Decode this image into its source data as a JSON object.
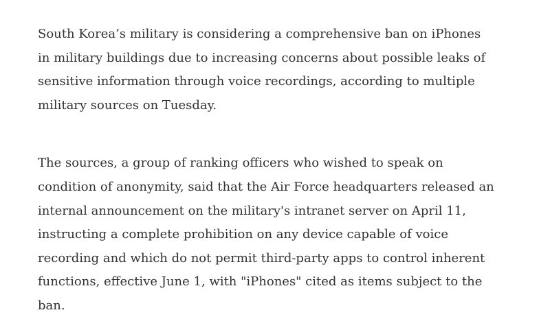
{
  "article": {
    "paragraphs": [
      {
        "lines": [
          "South Korea’s military is considering a comprehensive ban on iPhones",
          "in military buildings due to increasing concerns about possible leaks of",
          "sensitive information through voice recordings, according to multiple",
          "military sources on Tuesday."
        ]
      },
      {
        "lines": [
          "The sources, a group of ranking officers who wished to speak on",
          "condition of anonymity, said that the Air Force headquarters released an",
          "internal announcement on the military's intranet server on April 11,",
          "instructing a complete prohibition on any device capable of voice",
          "recording and which do not permit third-party apps to control inherent",
          "functions, effective June 1, with \"iPhones\" cited as items subject to the",
          "ban."
        ]
      }
    ]
  }
}
